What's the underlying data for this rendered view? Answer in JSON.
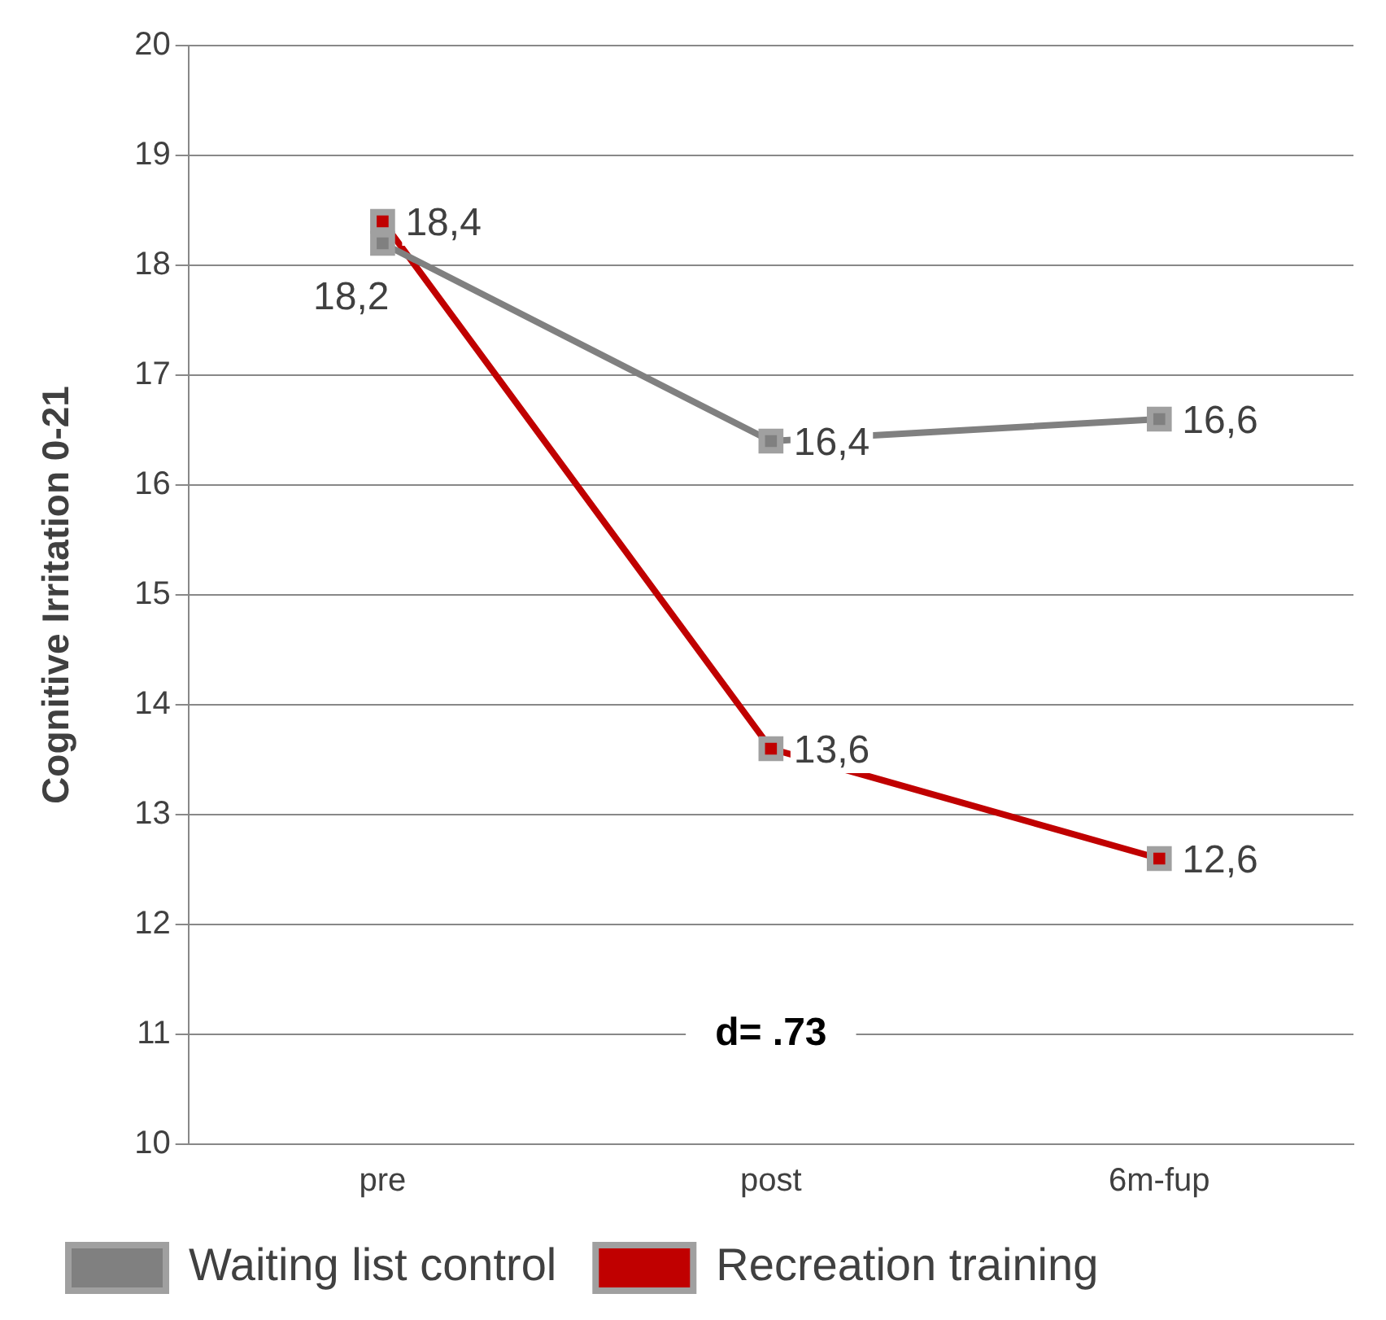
{
  "chart_data": {
    "type": "line",
    "ylabel": "Cognitive Irritation 0-21",
    "categories": [
      "pre",
      "post",
      "6m-fup"
    ],
    "series": [
      {
        "name": "Waiting list control",
        "color": "#808080",
        "values": [
          18.2,
          16.4,
          16.6
        ],
        "value_labels": [
          "18,2",
          "16,4",
          "16,6"
        ]
      },
      {
        "name": "Recreation training",
        "color": "#c00000",
        "values": [
          18.4,
          13.6,
          12.6
        ],
        "value_labels": [
          "18,4",
          "13,6",
          "12,6"
        ]
      }
    ],
    "ylim": [
      10,
      20
    ],
    "yticks": [
      10,
      11,
      12,
      13,
      14,
      15,
      16,
      17,
      18,
      19,
      20
    ],
    "grid": "y",
    "legend": "bottom",
    "marker": "square",
    "line_style": "solid",
    "annotations": [
      "d= .73"
    ]
  }
}
